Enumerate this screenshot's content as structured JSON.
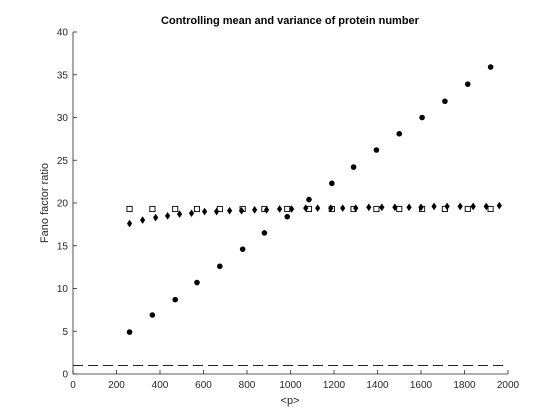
{
  "chart_data": {
    "type": "scatter",
    "title": "Controlling mean and variance of protein number",
    "xlabel": "<p>",
    "ylabel": "Fano factor ratio",
    "xlim": [
      0,
      2000
    ],
    "ylim": [
      0,
      40
    ],
    "x_ticks": [
      0,
      200,
      400,
      600,
      800,
      1000,
      1200,
      1400,
      1600,
      1800,
      2000
    ],
    "y_ticks": [
      0,
      5,
      10,
      15,
      20,
      25,
      30,
      35,
      40
    ],
    "grid": false,
    "legend": "none",
    "series": [
      {
        "marker": "circle",
        "color": "#000000",
        "x": [
          260,
          365,
          470,
          570,
          675,
          780,
          880,
          985,
          1085,
          1190,
          1290,
          1395,
          1500,
          1605,
          1710,
          1815,
          1920
        ],
        "y": [
          4.9,
          6.9,
          8.7,
          10.7,
          12.6,
          14.6,
          16.5,
          18.4,
          20.4,
          22.3,
          24.2,
          26.2,
          28.1,
          30.0,
          31.9,
          33.9,
          35.9
        ]
      },
      {
        "marker": "square",
        "color": "#000000",
        "x": [
          260,
          365,
          470,
          570,
          675,
          780,
          880,
          985,
          1085,
          1190,
          1290,
          1395,
          1500,
          1605,
          1710,
          1815,
          1920
        ],
        "y": [
          19.3,
          19.3,
          19.3,
          19.3,
          19.3,
          19.3,
          19.3,
          19.3,
          19.3,
          19.3,
          19.3,
          19.3,
          19.3,
          19.3,
          19.3,
          19.3,
          19.3
        ]
      },
      {
        "marker": "diamond",
        "color": "#000000",
        "x": [
          260,
          320,
          380,
          435,
          490,
          545,
          605,
          660,
          720,
          775,
          835,
          890,
          950,
          1005,
          1070,
          1125,
          1185,
          1240,
          1300,
          1360,
          1420,
          1480,
          1545,
          1600,
          1660,
          1720,
          1780,
          1840,
          1900,
          1960
        ],
        "y": [
          17.6,
          18.0,
          18.3,
          18.5,
          18.7,
          18.8,
          19.0,
          19.0,
          19.1,
          19.1,
          19.2,
          19.2,
          19.3,
          19.3,
          19.4,
          19.4,
          19.4,
          19.4,
          19.4,
          19.5,
          19.5,
          19.5,
          19.5,
          19.5,
          19.6,
          19.6,
          19.6,
          19.6,
          19.6,
          19.7
        ]
      },
      {
        "marker": "dashed-line",
        "color": "#000000",
        "x": [
          0,
          2000
        ],
        "y": [
          1,
          1
        ]
      }
    ]
  }
}
